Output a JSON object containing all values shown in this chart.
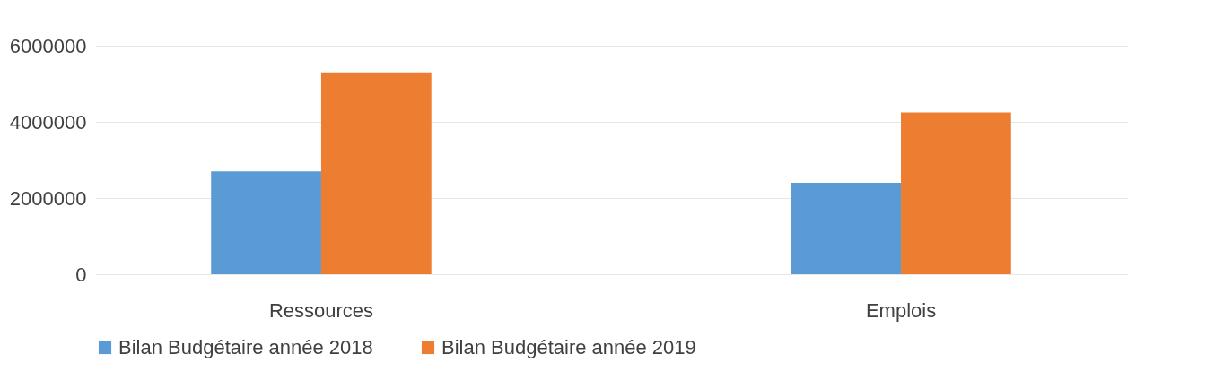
{
  "chart_data": {
    "type": "bar",
    "categories": [
      "Ressources",
      "Emplois"
    ],
    "series": [
      {
        "name": "Bilan Budgétaire année 2018",
        "color": "#5b9bd5",
        "values": [
          2700000,
          2400000
        ]
      },
      {
        "name": "Bilan Budgétaire année 2019",
        "color": "#ed7d31",
        "values": [
          5300000,
          4250000
        ]
      }
    ],
    "ylim": [
      0,
      6000000
    ],
    "yticks": [
      0,
      2000000,
      4000000,
      6000000
    ],
    "grid": true,
    "legend": "bottom"
  }
}
